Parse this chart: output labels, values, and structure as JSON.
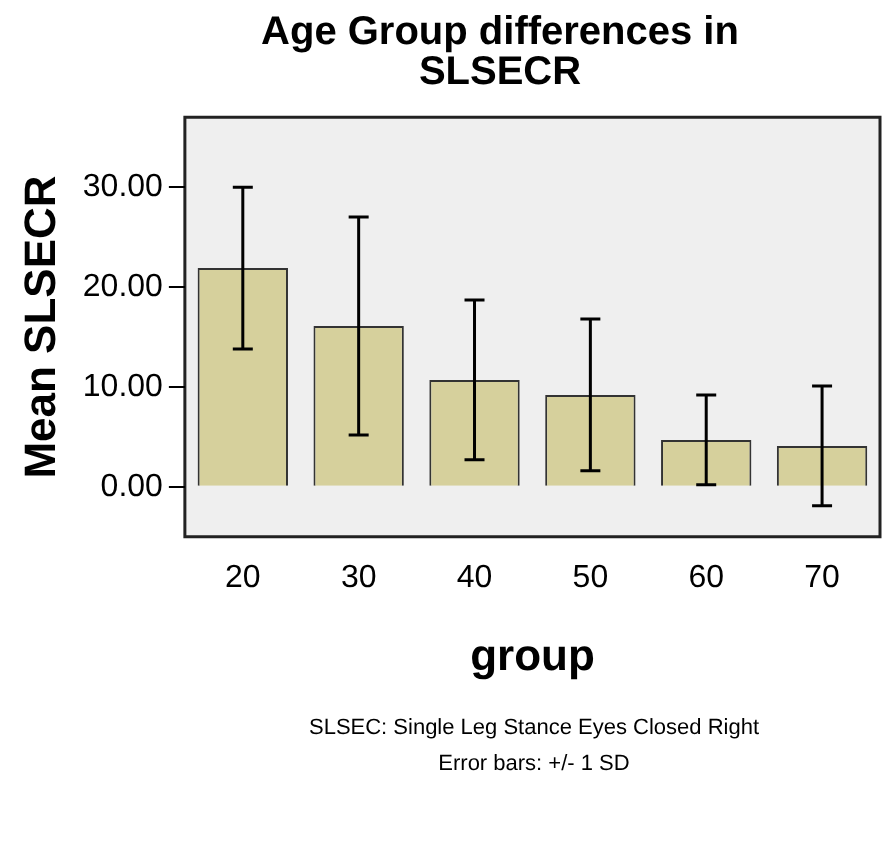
{
  "chart_data": {
    "type": "bar",
    "title": "Age Group differences in SLSECR",
    "xlabel": "group",
    "ylabel": "Mean SLSECR",
    "categories": [
      "20",
      "30",
      "40",
      "50",
      "60",
      "70"
    ],
    "values": [
      21.9,
      16.1,
      10.7,
      9.2,
      4.7,
      4.1
    ],
    "errors": [
      8.1,
      10.9,
      8.0,
      7.6,
      4.5,
      6.0
    ],
    "color": "#d6d09c",
    "ylim": [
      -5,
      37
    ],
    "yticks": [
      {
        "value": 0,
        "label": "0.00"
      },
      {
        "value": 10,
        "label": "10.00"
      },
      {
        "value": 20,
        "label": "20.00"
      },
      {
        "value": 30,
        "label": "30.00"
      }
    ],
    "grid": false,
    "annotations": [
      "SLSEC: Single Leg Stance Eyes Closed Right",
      "Error bars: +/- 1 SD"
    ]
  }
}
